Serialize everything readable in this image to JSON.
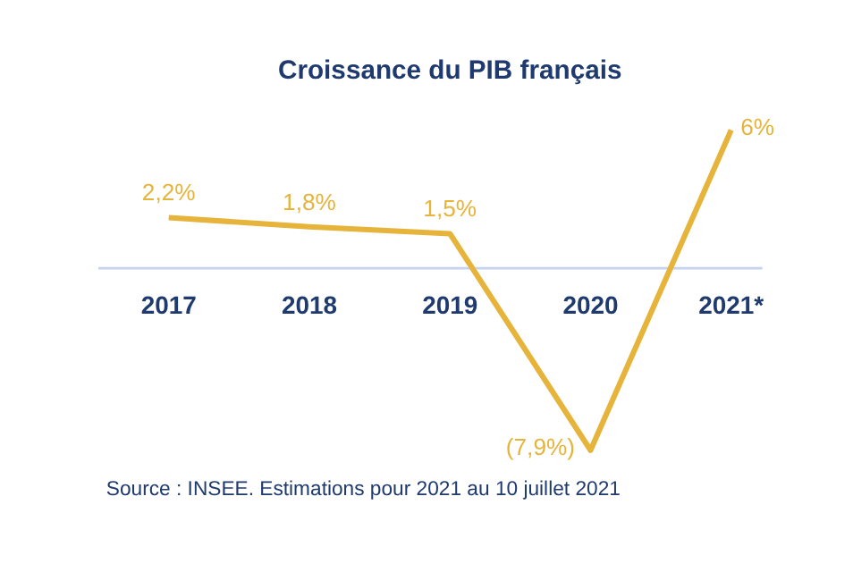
{
  "chart_data": {
    "type": "line",
    "title": "Croissance du PIB français",
    "categories": [
      "2017",
      "2018",
      "2019",
      "2020",
      "2021*"
    ],
    "series": [
      {
        "color": "#e6b43a",
        "values": [
          2.2,
          1.8,
          1.5,
          -7.9,
          6
        ],
        "value_labels": [
          "2,2%",
          "1,8%",
          "1,5%",
          "(7,9%)",
          "6%"
        ]
      }
    ],
    "marker": "none",
    "line_style": "solid",
    "annotations": [
      "Source : INSEE. Estimations pour 2021 au 10 juillet 2021"
    ]
  }
}
